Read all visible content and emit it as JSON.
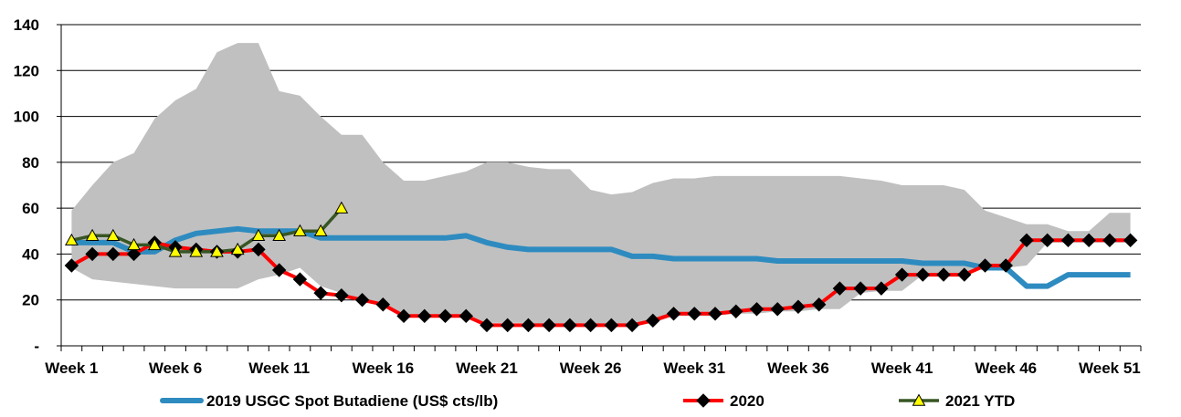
{
  "chart_data": {
    "type": "line",
    "title": "",
    "xlabel": "",
    "ylabel": "",
    "ylim": [
      0,
      140
    ],
    "yticks": [
      "-",
      "20",
      "40",
      "60",
      "80",
      "100",
      "120",
      "140"
    ],
    "x_tick_labels": [
      "Week 1",
      "Week 6",
      "Week 11",
      "Week 16",
      "Week 21",
      "Week 26",
      "Week 31",
      "Week 36",
      "Week 41",
      "Week 46",
      "Week 51"
    ],
    "x_tick_weeks": [
      1,
      6,
      11,
      16,
      21,
      26,
      31,
      36,
      41,
      46,
      51
    ],
    "range_band": {
      "color": "#c0c0c0",
      "weeks": [
        1,
        2,
        3,
        4,
        5,
        6,
        7,
        8,
        9,
        10,
        11,
        12,
        13,
        14,
        15,
        16,
        17,
        18,
        19,
        20,
        21,
        22,
        23,
        24,
        25,
        26,
        27,
        28,
        29,
        30,
        31,
        32,
        33,
        34,
        35,
        36,
        37,
        38,
        39,
        40,
        41,
        42,
        43,
        44,
        45,
        46,
        47,
        48,
        49,
        50,
        51,
        52
      ],
      "upper": [
        59,
        70,
        80,
        84,
        99,
        107,
        112,
        128,
        132,
        132,
        111,
        109,
        100,
        92,
        92,
        80,
        72,
        72,
        74,
        76,
        80,
        80,
        78,
        77,
        77,
        68,
        66,
        67,
        71,
        73,
        73,
        74,
        74,
        74,
        74,
        74,
        74,
        74,
        73,
        72,
        70,
        70,
        70,
        68,
        59,
        56,
        53,
        53,
        50,
        50,
        58,
        58
      ],
      "lower": [
        34,
        29,
        28,
        27,
        26,
        25,
        25,
        25,
        25,
        29,
        31,
        34,
        26,
        23,
        20,
        17,
        13,
        13,
        13,
        12,
        10,
        10,
        10,
        9,
        9,
        9,
        9,
        9,
        10,
        13,
        13,
        13,
        14,
        14,
        15,
        15,
        16,
        16,
        23,
        24,
        24,
        31,
        31,
        31,
        34,
        34,
        35,
        45,
        45,
        45,
        45,
        45
      ]
    },
    "series": [
      {
        "name": "2019 USGC Spot Butadiene (US$ cts/lb)",
        "color": "#2e8bc0",
        "weeks": [
          1,
          2,
          3,
          4,
          5,
          6,
          7,
          8,
          9,
          10,
          11,
          12,
          13,
          14,
          15,
          16,
          17,
          18,
          19,
          20,
          21,
          22,
          23,
          24,
          25,
          26,
          27,
          28,
          29,
          30,
          31,
          32,
          33,
          34,
          35,
          36,
          37,
          38,
          39,
          40,
          41,
          42,
          43,
          44,
          45,
          46,
          47,
          48,
          49,
          50,
          51,
          52
        ],
        "values": [
          45,
          45,
          45,
          41,
          41,
          46,
          49,
          50,
          51,
          50,
          50,
          50,
          47,
          47,
          47,
          47,
          47,
          47,
          47,
          48,
          45,
          43,
          42,
          42,
          42,
          42,
          42,
          39,
          39,
          38,
          38,
          38,
          38,
          38,
          37,
          37,
          37,
          37,
          37,
          37,
          37,
          36,
          36,
          36,
          34,
          34,
          26,
          26,
          31,
          31,
          31,
          31
        ]
      },
      {
        "name": "2020",
        "color": "#ff0000",
        "marker": "diamond",
        "weeks": [
          1,
          2,
          3,
          4,
          5,
          6,
          7,
          8,
          9,
          10,
          11,
          12,
          13,
          14,
          15,
          16,
          17,
          18,
          19,
          20,
          21,
          22,
          23,
          24,
          25,
          26,
          27,
          28,
          29,
          30,
          31,
          32,
          33,
          34,
          35,
          36,
          37,
          38,
          39,
          40,
          41,
          42,
          43,
          44,
          45,
          46,
          47,
          48,
          49,
          50,
          51,
          52
        ],
        "values": [
          35,
          40,
          40,
          40,
          45,
          43,
          42,
          41,
          41,
          42,
          33,
          29,
          23,
          22,
          20,
          18,
          13,
          13,
          13,
          13,
          9,
          9,
          9,
          9,
          9,
          9,
          9,
          9,
          11,
          14,
          14,
          14,
          15,
          16,
          16,
          17,
          18,
          25,
          25,
          25,
          31,
          31,
          31,
          31,
          35,
          35,
          46,
          46,
          46,
          46,
          46,
          46
        ]
      },
      {
        "name": "2021 YTD",
        "color": "#375623",
        "marker": "triangle",
        "marker_color": "#ffff00",
        "weeks": [
          1,
          2,
          3,
          4,
          5,
          6,
          7,
          8,
          9,
          10,
          11,
          12,
          13,
          14
        ],
        "values": [
          46,
          48,
          48,
          44,
          44,
          41,
          41,
          41,
          42,
          48,
          48,
          50,
          50,
          60
        ]
      }
    ],
    "legend_position": "bottom",
    "grid": "horizontal"
  }
}
